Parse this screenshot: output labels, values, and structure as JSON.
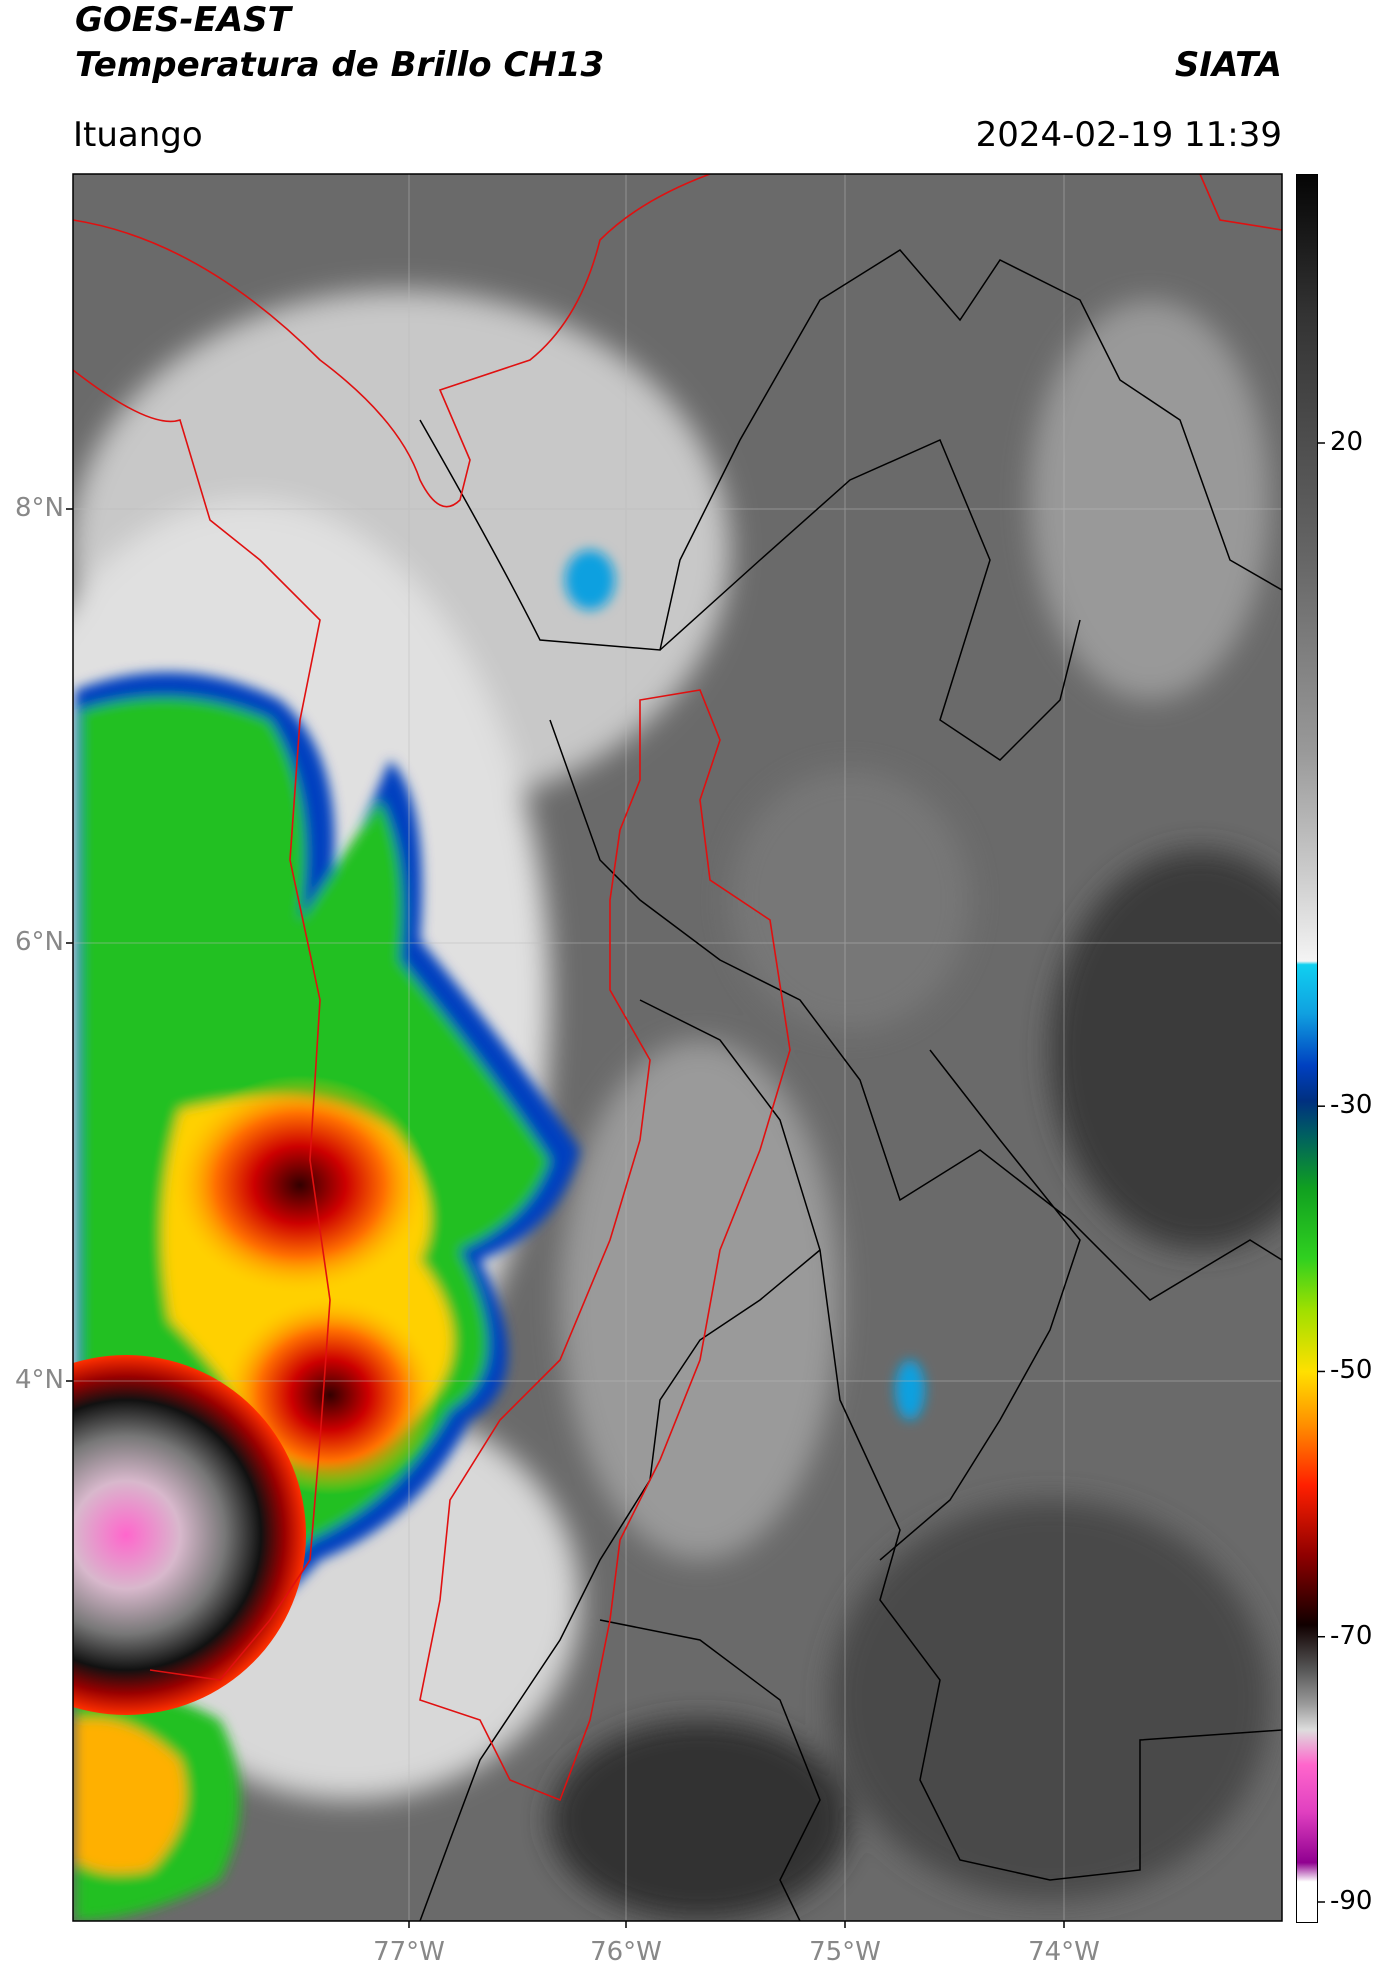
{
  "header": {
    "title": "GOES-EAST",
    "subtitle": "Temperatura de Brillo CH13",
    "brand": "SIATA",
    "location": "Ituango",
    "datetime": "2024-02-19 11:39"
  },
  "map": {
    "lat_labels": [
      "8°N",
      "6°N",
      "4°N"
    ],
    "lon_labels": [
      "77°W",
      "76°W",
      "75°W",
      "74°W"
    ]
  },
  "colorbar": {
    "ticks": [
      20,
      -30,
      -50,
      -70,
      -90
    ]
  }
}
